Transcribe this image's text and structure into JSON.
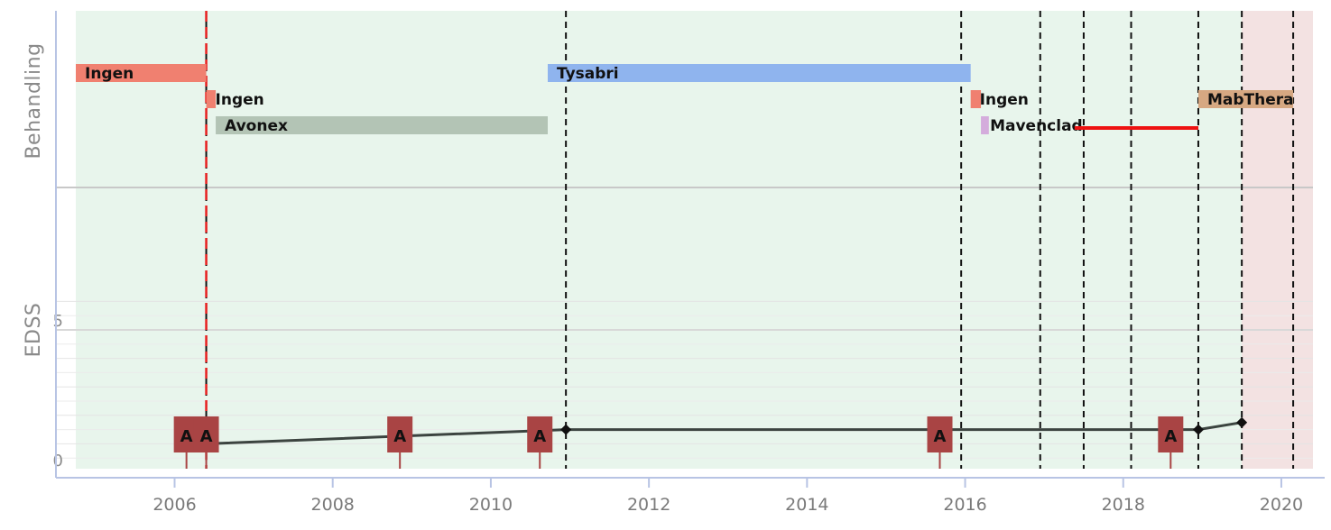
{
  "chart_data": {
    "type": "timeline",
    "xlim": [
      2004.75,
      2020.4
    ],
    "x_ticks": [
      "2006",
      "2008",
      "2010",
      "2012",
      "2014",
      "2016",
      "2018",
      "2020"
    ],
    "panels": {
      "treatment": {
        "ylabel": "Behandling"
      },
      "edss": {
        "ylabel": "EDSS",
        "ylim": [
          0,
          6.5
        ],
        "y_ticks": [
          "0",
          "5"
        ]
      }
    },
    "background": {
      "main_color": "#e8f5ec",
      "highlight": {
        "start": 2019.5,
        "end": 2020.4,
        "color": "#f3e2e2"
      }
    },
    "treatments": [
      {
        "label": "Ingen",
        "start": 2004.75,
        "end": 2006.4,
        "row": 0,
        "color": "#f08070"
      },
      {
        "label": "Ingen",
        "start": 2006.4,
        "end": 2006.52,
        "row": 1,
        "color": "#f08070"
      },
      {
        "label": "Avonex",
        "start": 2006.52,
        "end": 2010.72,
        "row": 2,
        "color": "#b3c4b5"
      },
      {
        "label": "Tysabri",
        "start": 2010.72,
        "end": 2016.07,
        "row": 0,
        "color": "#8fb4ee"
      },
      {
        "label": "Ingen",
        "start": 2016.07,
        "end": 2016.2,
        "row": 1,
        "color": "#f08070"
      },
      {
        "label": "Mavenclad",
        "start": 2016.2,
        "end": 2016.3,
        "row": 2,
        "color": "#d4acdc"
      },
      {
        "label": "MabThera",
        "start": 2018.95,
        "end": 2020.15,
        "row": 1,
        "color": "#d6a882"
      }
    ],
    "red_interval": {
      "start": 2016.3,
      "end": 2018.95,
      "row": 2,
      "color": "#ee1111"
    },
    "red_marker_x": 2006.4,
    "event_lines": [
      2006.4,
      2010.95,
      2015.95,
      2016.95,
      2017.5,
      2018.1,
      2018.95,
      2019.5,
      2020.15
    ],
    "edss_series": {
      "x": [
        2006.4,
        2010.95,
        2018.95,
        2019.5
      ],
      "y": [
        1.0,
        1.5,
        1.5,
        1.75
      ]
    },
    "attacks": [
      {
        "label": "A",
        "x": 2006.15
      },
      {
        "label": "A",
        "x": 2006.4
      },
      {
        "label": "A",
        "x": 2008.85
      },
      {
        "label": "A",
        "x": 2010.62
      },
      {
        "label": "A",
        "x": 2015.68
      },
      {
        "label": "A",
        "x": 2018.6
      }
    ],
    "colors": {
      "attack": "#a94444",
      "edss_line": "#3c4440",
      "axis": "#b8c4e4",
      "grid": "#d8d8d8",
      "event_line": "#111111",
      "red_marker": "#e82020"
    }
  }
}
